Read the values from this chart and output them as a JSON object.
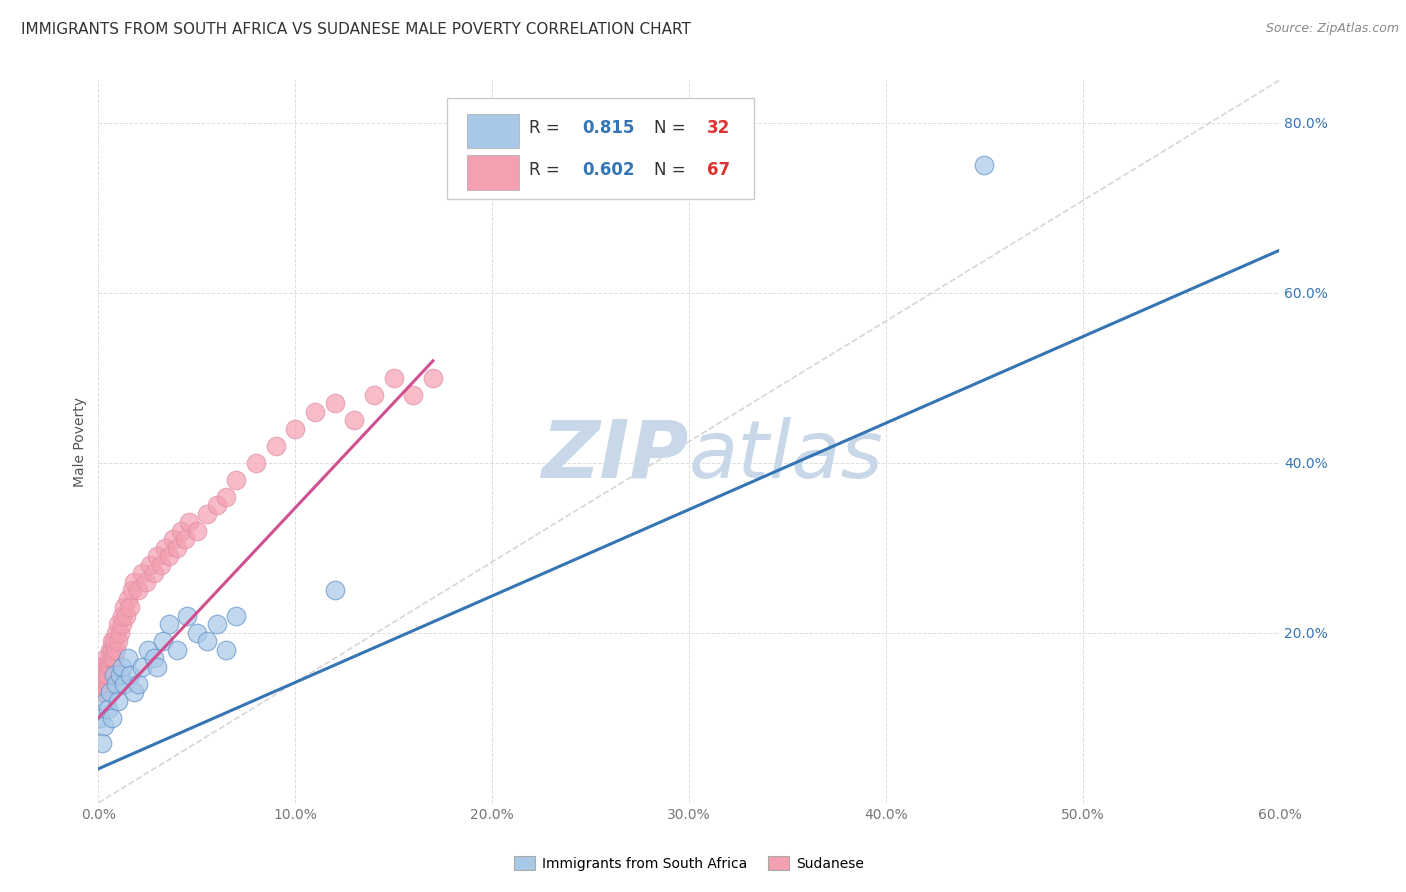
{
  "title": "IMMIGRANTS FROM SOUTH AFRICA VS SUDANESE MALE POVERTY CORRELATION CHART",
  "source": "Source: ZipAtlas.com",
  "xlabel_blue": "Immigrants from South Africa",
  "xlabel_pink": "Sudanese",
  "ylabel": "Male Poverty",
  "xmin": 0.0,
  "xmax": 0.6,
  "ymin": 0.0,
  "ymax": 0.85,
  "xticks": [
    0.0,
    0.1,
    0.2,
    0.3,
    0.4,
    0.5,
    0.6
  ],
  "yticks": [
    0.0,
    0.2,
    0.4,
    0.6,
    0.8
  ],
  "xtick_labels": [
    "0.0%",
    "10.0%",
    "20.0%",
    "30.0%",
    "40.0%",
    "50.0%",
    "60.0%"
  ],
  "ytick_labels": [
    "",
    "20.0%",
    "40.0%",
    "60.0%",
    "80.0%"
  ],
  "blue_color": "#a8c8e8",
  "pink_color": "#f4a0b0",
  "blue_line_color": "#3575b5",
  "pink_line_color": "#d05090",
  "diag_line_color": "#cccccc",
  "watermark_color": "#c8d8e8",
  "legend_R1": "0.815",
  "legend_N1": "32",
  "legend_R2": "0.602",
  "legend_N2": "67",
  "blue_scatter_x": [
    0.001,
    0.002,
    0.003,
    0.004,
    0.005,
    0.006,
    0.007,
    0.008,
    0.009,
    0.01,
    0.011,
    0.012,
    0.013,
    0.015,
    0.016,
    0.018,
    0.02,
    0.022,
    0.025,
    0.028,
    0.03,
    0.033,
    0.036,
    0.04,
    0.045,
    0.05,
    0.055,
    0.06,
    0.065,
    0.07,
    0.12,
    0.45
  ],
  "blue_scatter_y": [
    0.1,
    0.07,
    0.09,
    0.12,
    0.11,
    0.13,
    0.1,
    0.15,
    0.14,
    0.12,
    0.15,
    0.16,
    0.14,
    0.17,
    0.15,
    0.13,
    0.14,
    0.16,
    0.18,
    0.17,
    0.16,
    0.19,
    0.21,
    0.18,
    0.22,
    0.2,
    0.19,
    0.21,
    0.18,
    0.22,
    0.25,
    0.75
  ],
  "pink_scatter_x": [
    0.001,
    0.001,
    0.001,
    0.001,
    0.002,
    0.002,
    0.002,
    0.002,
    0.003,
    0.003,
    0.003,
    0.004,
    0.004,
    0.004,
    0.005,
    0.005,
    0.005,
    0.006,
    0.006,
    0.006,
    0.007,
    0.007,
    0.007,
    0.008,
    0.008,
    0.009,
    0.009,
    0.01,
    0.01,
    0.011,
    0.012,
    0.012,
    0.013,
    0.014,
    0.015,
    0.016,
    0.017,
    0.018,
    0.02,
    0.022,
    0.024,
    0.026,
    0.028,
    0.03,
    0.032,
    0.034,
    0.036,
    0.038,
    0.04,
    0.042,
    0.044,
    0.046,
    0.05,
    0.055,
    0.06,
    0.065,
    0.07,
    0.08,
    0.09,
    0.1,
    0.11,
    0.12,
    0.13,
    0.14,
    0.15,
    0.16,
    0.17
  ],
  "pink_scatter_y": [
    0.15,
    0.14,
    0.13,
    0.16,
    0.15,
    0.13,
    0.16,
    0.14,
    0.14,
    0.15,
    0.16,
    0.13,
    0.15,
    0.17,
    0.14,
    0.16,
    0.15,
    0.16,
    0.18,
    0.17,
    0.17,
    0.18,
    0.19,
    0.17,
    0.19,
    0.18,
    0.2,
    0.19,
    0.21,
    0.2,
    0.21,
    0.22,
    0.23,
    0.22,
    0.24,
    0.23,
    0.25,
    0.26,
    0.25,
    0.27,
    0.26,
    0.28,
    0.27,
    0.29,
    0.28,
    0.3,
    0.29,
    0.31,
    0.3,
    0.32,
    0.31,
    0.33,
    0.32,
    0.34,
    0.35,
    0.36,
    0.38,
    0.4,
    0.42,
    0.44,
    0.46,
    0.47,
    0.45,
    0.48,
    0.5,
    0.48,
    0.5
  ],
  "blue_line_x": [
    0.0,
    0.6
  ],
  "blue_line_y": [
    0.04,
    0.65
  ],
  "pink_line_x": [
    0.0,
    0.17
  ],
  "pink_line_y": [
    0.1,
    0.52
  ],
  "title_fontsize": 11,
  "axis_fontsize": 10,
  "tick_fontsize": 10,
  "source_fontsize": 9,
  "watermark_text": "ZIPatlas"
}
